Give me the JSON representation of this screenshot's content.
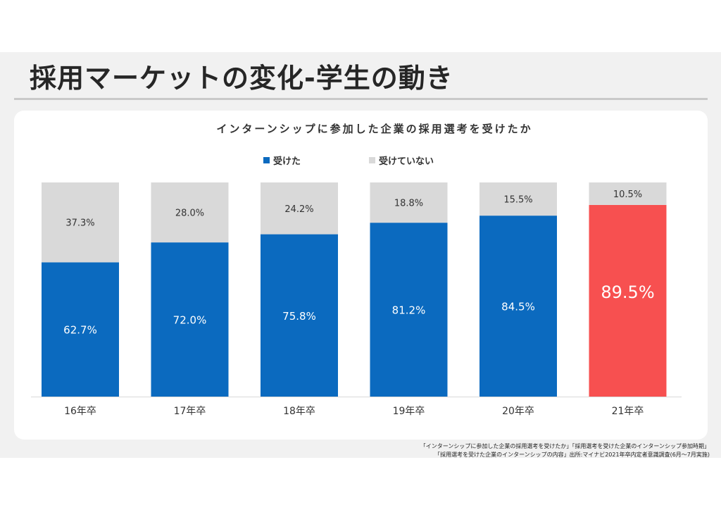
{
  "slide": {
    "title": "採用マーケットの変化-学生の動き"
  },
  "chart_data": {
    "type": "bar",
    "stacked": true,
    "percent_stacked": true,
    "title": "インターンシップに参加した企業の採用選考を受けたか",
    "categories": [
      "16年卒",
      "17年卒",
      "18年卒",
      "19年卒",
      "20年卒",
      "21年卒"
    ],
    "series": [
      {
        "name": "受けた",
        "values": [
          62.7,
          72.0,
          75.8,
          81.2,
          84.5,
          89.5
        ],
        "labels": [
          "62.7%",
          "72.0%",
          "75.8%",
          "81.2%",
          "84.5%",
          "89.5%"
        ],
        "color": "#0b6abf",
        "highlight_color": "#f75050",
        "highlight_index": 5
      },
      {
        "name": "受けていない",
        "values": [
          37.3,
          28.0,
          24.2,
          18.8,
          15.5,
          10.5
        ],
        "labels": [
          "37.3%",
          "28.0%",
          "24.2%",
          "18.8%",
          "15.5%",
          "10.5%"
        ],
        "color": "#d9d9d9"
      }
    ],
    "ylim": [
      0,
      100
    ],
    "grid": false,
    "legend_position": "top-center"
  },
  "footnote": {
    "line1": "「インターンシップに参加した企業の採用選考を受けたか」「採用選考を受けた企業のインターンシップ参加時期」",
    "line2": "「採用選考を受けた企業のインターンシップの内容」出所:マイナビ2021年卒内定者意識調査(6月～7月実施)"
  }
}
